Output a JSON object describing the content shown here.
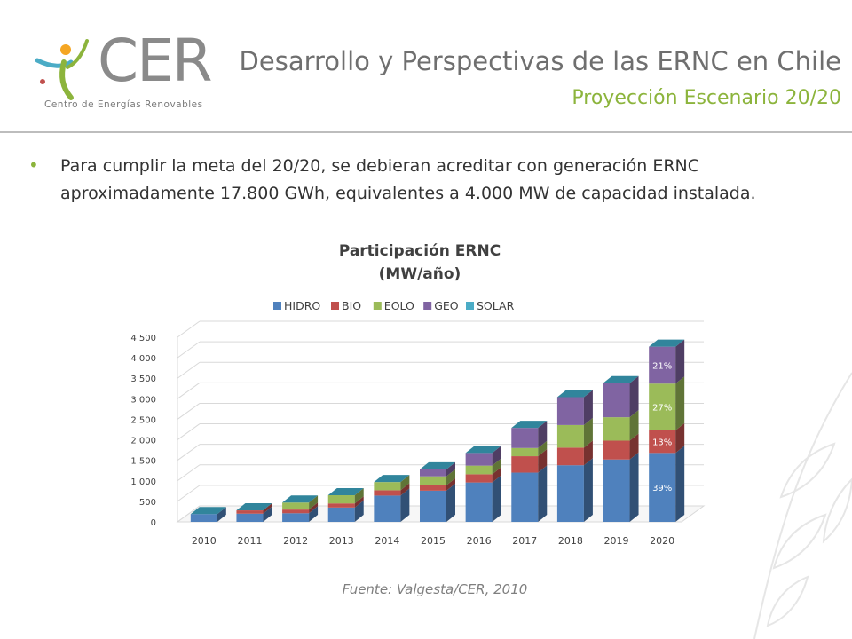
{
  "header": {
    "logo_text": "CER",
    "logo_subtitle": "Centro de Energías Renovables",
    "title": "Desarrollo y Perspectivas de las ERNC en Chile",
    "subtitle": "Proyección Escenario 20/20"
  },
  "body": {
    "bullet": "Para cumplir la meta del 20/20, se debieran acreditar con generación ERNC aproximadamente 17.800 GWh, equivalentes a 4.000 MW de capacidad instalada."
  },
  "source": "Fuente: Valgesta/CER, 2010",
  "colors": {
    "HIDRO": "#4f81bd",
    "BIO": "#c0504d",
    "EOLO": "#9bbb59",
    "GEO": "#8064a2",
    "SOLAR": "#4bacc6",
    "accent_green": "#8cb43c"
  },
  "chart_data": {
    "type": "bar",
    "stacked": true,
    "three_d": true,
    "title_line1": "Participación ERNC",
    "title_line2": "(MW/año)",
    "categories": [
      "2010",
      "2011",
      "2012",
      "2013",
      "2014",
      "2015",
      "2016",
      "2017",
      "2018",
      "2019",
      "2020"
    ],
    "series": [
      {
        "name": "HIDRO",
        "values": [
          190,
          200,
          210,
          350,
          640,
          760,
          960,
          1200,
          1380,
          1520,
          1680
        ]
      },
      {
        "name": "BIO",
        "values": [
          0,
          80,
          90,
          100,
          130,
          130,
          200,
          400,
          430,
          460,
          550
        ]
      },
      {
        "name": "EOLO",
        "values": [
          0,
          0,
          170,
          200,
          200,
          220,
          210,
          200,
          550,
          570,
          1140
        ]
      },
      {
        "name": "GEO",
        "values": [
          0,
          0,
          0,
          0,
          0,
          170,
          310,
          490,
          680,
          830,
          900
        ]
      },
      {
        "name": "SOLAR",
        "values": [
          0,
          0,
          0,
          0,
          0,
          0,
          0,
          0,
          0,
          0,
          0
        ]
      }
    ],
    "yticks": [
      "0",
      "500",
      "1 000",
      "1 500",
      "2 000",
      "2 500",
      "3 000",
      "3 500",
      "4 000",
      "4 500"
    ],
    "ylim": [
      0,
      4500
    ],
    "legend_position": "top",
    "grid": true,
    "annotations": [
      {
        "category": "2020",
        "series": "HIDRO",
        "text": "39%"
      },
      {
        "category": "2020",
        "series": "BIO",
        "text": "13%"
      },
      {
        "category": "2020",
        "series": "EOLO",
        "text": "27%"
      },
      {
        "category": "2020",
        "series": "GEO",
        "text": "21%"
      }
    ]
  }
}
